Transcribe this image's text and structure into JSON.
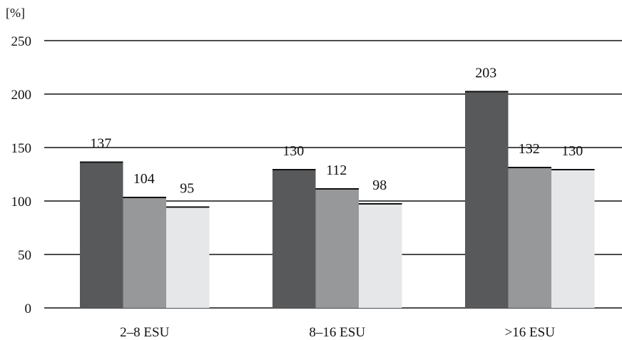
{
  "chart_data": {
    "type": "bar",
    "unit_label": "[%]",
    "categories": [
      "2–8 ESU",
      "8–16 ESU",
      ">16 ESU"
    ],
    "series": [
      {
        "values": [
          137,
          130,
          203
        ],
        "color": "#58595b"
      },
      {
        "values": [
          104,
          112,
          132
        ],
        "color": "#97989a"
      },
      {
        "values": [
          95,
          98,
          130
        ],
        "color": "#e6e7e8"
      }
    ],
    "ylim": [
      0,
      250
    ],
    "yticks": [
      0,
      50,
      100,
      150,
      200,
      250
    ],
    "grid": true,
    "legend": "none"
  }
}
